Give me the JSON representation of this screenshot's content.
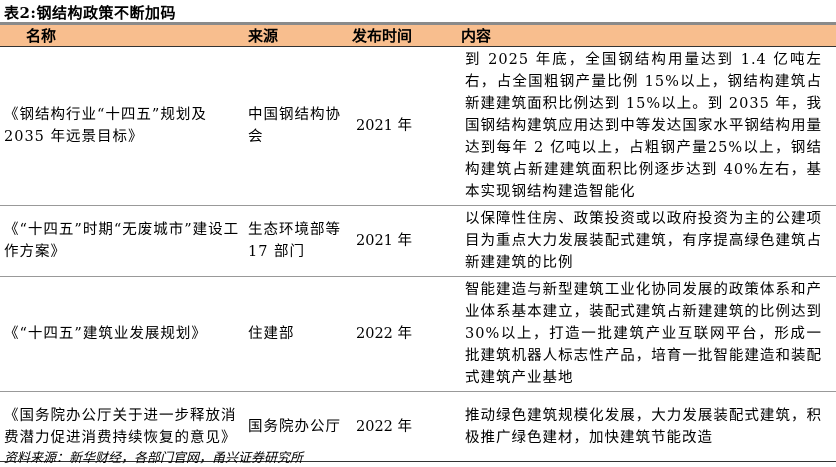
{
  "title": "表2:钢结构政策不断加码",
  "headers": [
    "名称",
    "来源",
    "发布时间",
    "内容"
  ],
  "header_color": "#F8BE8E",
  "rows": [
    {
      "name": "《钢结构行业“十四五”规划及 2035 年远景目标》",
      "source": "中国钢结构协会",
      "date": "2021 年",
      "content": "到 2025 年底，全国钢结构用量达到 1.4 亿吨左右，占全国粗钢产量比例 15%以上，钢结构建筑占新建建筑面积比例达到 15%以上。到 2035 年，我国钢结构建筑应用达到中等发达国家水平钢结构用量达到每年 2 亿吨以上，占粗钢产量25%以上，钢结构建筑占新建建筑面积比例逐步达到 40%左右，基本实现钢结构建造智能化"
    },
    {
      "name": "《“十四五”时期“无废城市”建设工作方案》",
      "source": "生态环境部等 17 部门",
      "date": "2021 年",
      "content": "以保障性住房、政策投资或以政府投资为主的公建项目为重点大力发展装配式建筑，有序提高绿色建筑占新建建筑的比例"
    },
    {
      "name": "《“十四五”建筑业发展规划》",
      "source": "住建部",
      "date": "2022 年",
      "content": "智能建造与新型建筑工业化协同发展的政策体系和产业体系基本建立，装配式建筑占新建建筑的比例达到 30%以上，打造一批建筑产业互联网平台，形成一批建筑机器人标志性产品，培育一批智能建造和装配式建筑产业基地"
    },
    {
      "name": "《国务院办公厅关于进一步释放消费潜力促进消费持续恢复的意见》",
      "source": "国务院办公厅",
      "date": "2022 年",
      "content": "推动绿色建筑规模化发展，大力发展装配式建筑，积极推广绿色建材，加快建筑节能改造"
    }
  ],
  "footnote": "资料来源：新华财经，各部门官网，甬兴证券研究所"
}
